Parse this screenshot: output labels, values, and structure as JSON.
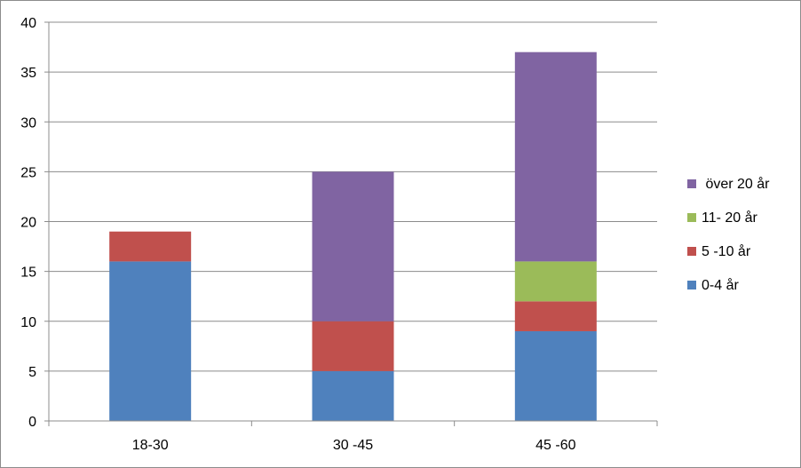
{
  "chart_data": {
    "type": "bar",
    "stacked": true,
    "categories": [
      "18-30",
      "30 -45",
      "45 -60"
    ],
    "series": [
      {
        "name": "0-4 år",
        "color": "#4F81BD",
        "values": [
          16,
          5,
          9
        ]
      },
      {
        "name": "5 -10 år",
        "color": "#C0504D",
        "values": [
          3,
          5,
          3
        ]
      },
      {
        "name": "11- 20 år",
        "color": "#9BBB59",
        "values": [
          0,
          0,
          4
        ]
      },
      {
        "name": " över 20 år",
        "color": "#8064A2",
        "values": [
          0,
          15,
          21
        ]
      }
    ],
    "ylim": [
      0,
      40
    ],
    "yticks": [
      0,
      5,
      10,
      15,
      20,
      25,
      30,
      35,
      40
    ],
    "grid": true,
    "legend_position": "right",
    "title": "",
    "xlabel": "",
    "ylabel": ""
  }
}
